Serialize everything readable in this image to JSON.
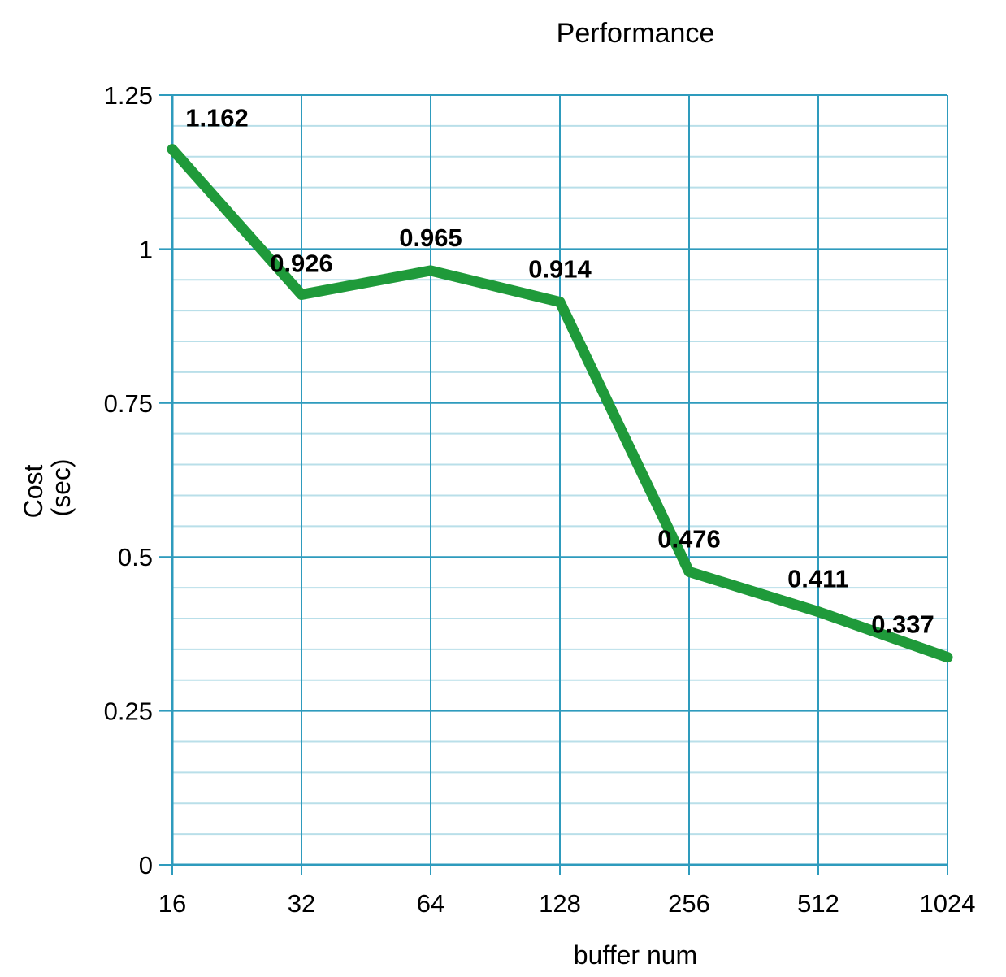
{
  "chart_data": {
    "type": "line",
    "title": "Performance",
    "xlabel": "buffer num",
    "ylabel": [
      "Cost",
      "(sec)"
    ],
    "x": [
      "16",
      "32",
      "64",
      "128",
      "256",
      "512",
      "1024"
    ],
    "series": [
      {
        "values": [
          1.162,
          0.926,
          0.965,
          0.914,
          0.476,
          0.411,
          0.337
        ],
        "labels": [
          "1.162",
          "0.926",
          "0.965",
          "0.914",
          "0.476",
          "0.411",
          "0.337"
        ],
        "color": "#1f9a3a"
      }
    ],
    "ylim": [
      0,
      1.25
    ],
    "yticks": [
      0,
      0.25,
      0.5,
      0.75,
      1,
      1.25
    ],
    "ytick_labels": [
      "0",
      "0.25",
      "0.5",
      "0.75",
      "1",
      "1.25"
    ],
    "grid": true,
    "grid_major_color": "#2e9bbd",
    "grid_minor_color": "#b9dfe9",
    "legend": "none"
  }
}
